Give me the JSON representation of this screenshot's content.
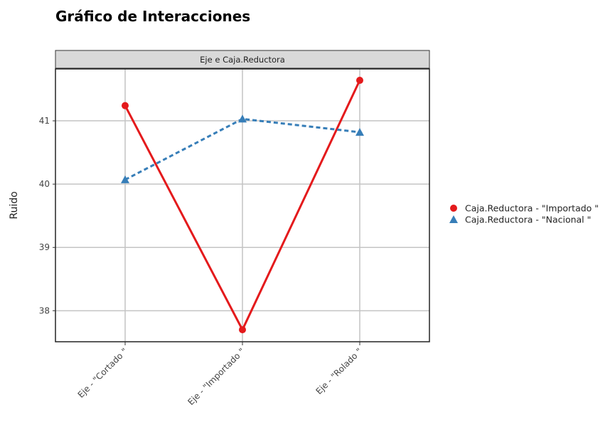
{
  "chart_data": {
    "type": "line",
    "title": "Gráfico de Interacciones",
    "facet_label": "Eje e Caja.Reductora",
    "xlabel": "",
    "ylabel": "Ruido",
    "categories": [
      "Eje - \"Cortado \"",
      "Eje - \"Importado \"",
      "Eje - \"Rolado \""
    ],
    "ylim": [
      37.51,
      41.82
    ],
    "yticks": [
      38,
      39,
      40,
      41
    ],
    "grid": true,
    "legend_position": "right",
    "series": [
      {
        "name": "Caja.Reductora - \"Importado \"",
        "values": [
          41.24,
          37.7,
          41.64
        ],
        "color": "#e41a1c",
        "marker": "circle",
        "line": "solid"
      },
      {
        "name": "Caja.Reductora - \"Nacional \"",
        "values": [
          40.07,
          41.03,
          40.82
        ],
        "color": "#377eb8",
        "marker": "triangle",
        "line": "dashed"
      }
    ]
  }
}
